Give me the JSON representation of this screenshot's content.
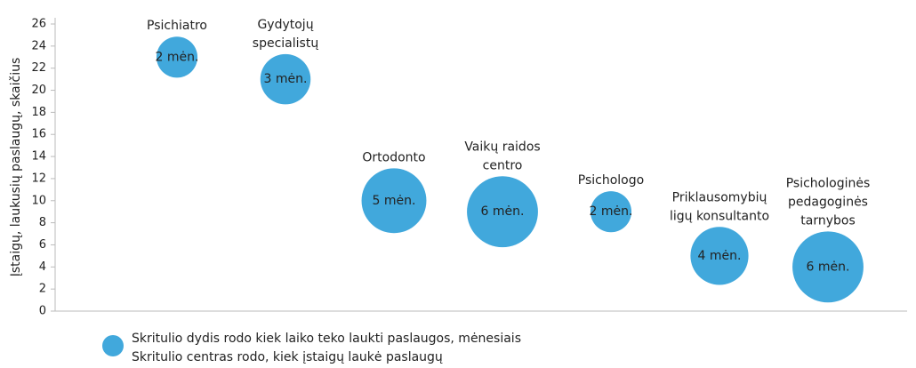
{
  "chart_data": {
    "type": "bubble",
    "ylabel": "Įstaigų, laukusių paslaugų, skaičius",
    "categories": [
      "Psichiatro",
      "Gydytojų\nspecialistų",
      "Ortodonto",
      "Vaikų raidos\ncentro",
      "Psichologo",
      "Priklausomybių\nligų konsultanto",
      "Psichologinės\npedagoginės\ntarnybos"
    ],
    "values": [
      23,
      21,
      10,
      9,
      9,
      5,
      4
    ],
    "sizes": [
      2,
      3,
      5,
      6,
      2,
      4,
      6
    ],
    "size_labels": [
      "2 mėn.",
      "3 mėn.",
      "5 mėn.",
      "6 mėn.",
      "2 mėn.",
      "4 mėn.",
      "6 mėn."
    ],
    "color": "#41a8dc",
    "ylim": [
      0,
      26
    ],
    "yticks": [
      0,
      2,
      4,
      6,
      8,
      10,
      12,
      14,
      16,
      18,
      20,
      22,
      24,
      26
    ],
    "legend": [
      "Skritulio dydis rodo kiek laiko teko laukti paslaugos, mėnesiais",
      "Skritulio centras rodo, kiek įstaigų laukė paslaugų"
    ]
  }
}
